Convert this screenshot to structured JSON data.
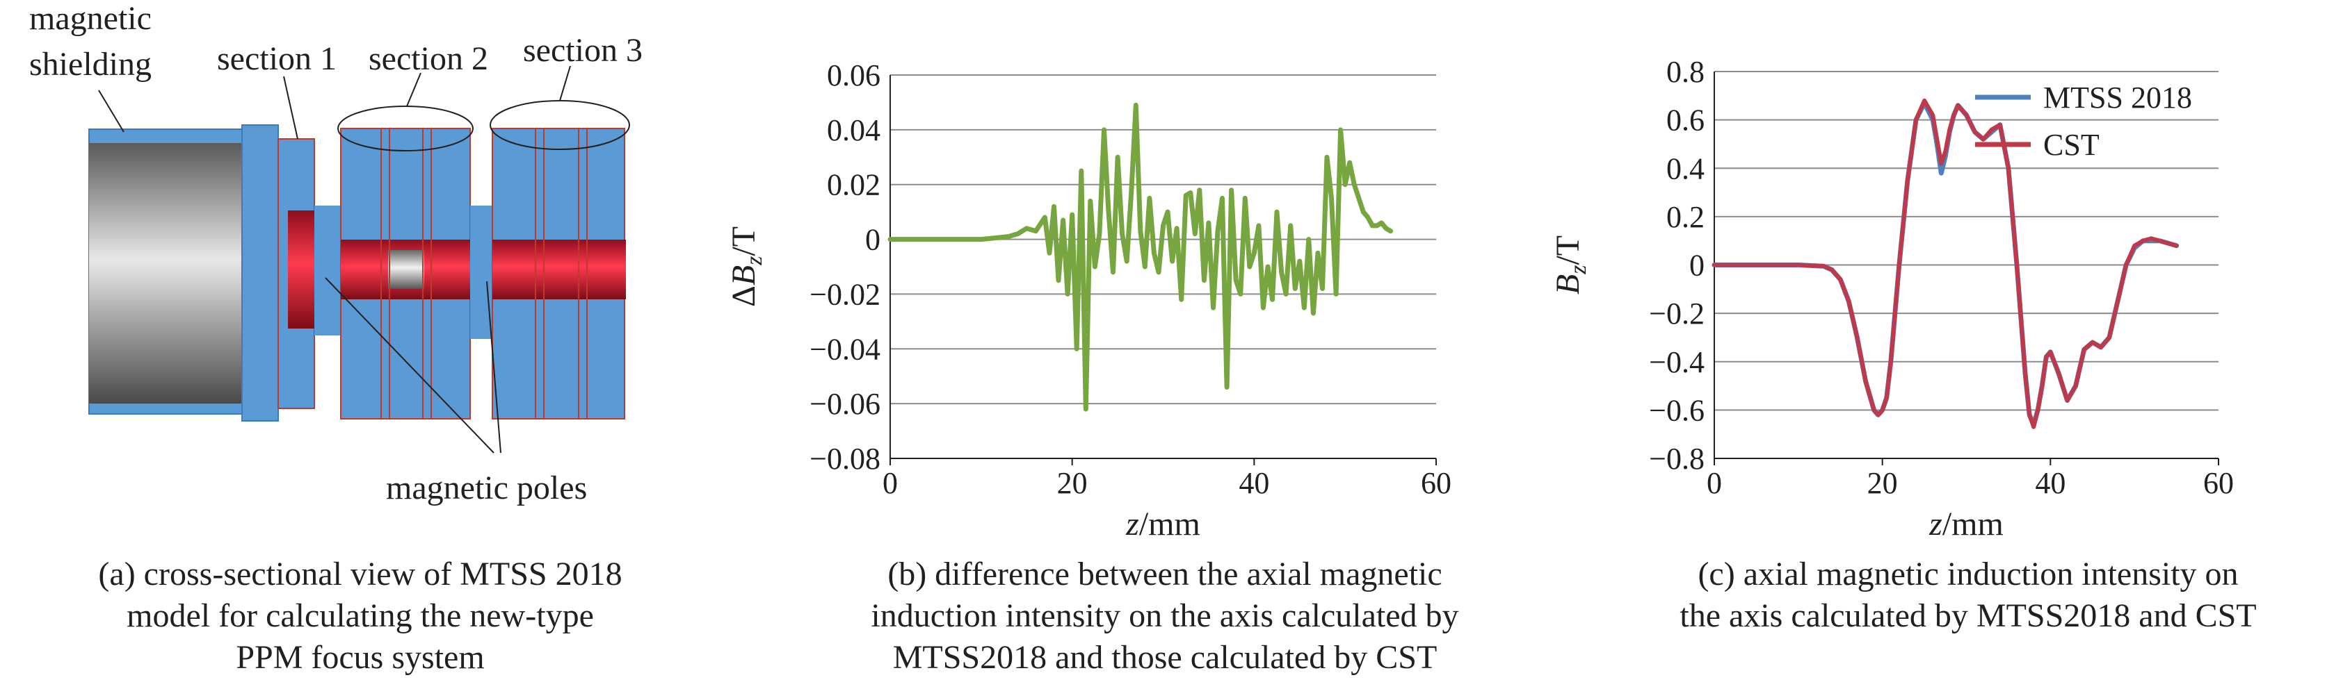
{
  "panel_a": {
    "labels": {
      "magnetic_shielding_line1": "magnetic",
      "magnetic_shielding_line2": "shielding",
      "section1": "section 1",
      "section2": "section 2",
      "section3": "section 3",
      "magnetic_poles": "magnetic poles"
    },
    "caption": [
      "(a) cross-sectional view of MTSS 2018",
      "model for calculating the new-type",
      "PPM focus system"
    ],
    "colors": {
      "blue": "#5b9bd5",
      "red": "#e0283c",
      "outline": "#c0392b"
    }
  },
  "chart_data": [
    {
      "type": "line",
      "xlabel": "z/mm",
      "ylabel": "ΔB_z/T",
      "xlim": [
        0,
        60
      ],
      "ylim": [
        -0.08,
        0.06
      ],
      "xticks": [
        "0",
        "20",
        "40",
        "60"
      ],
      "yticks": [
        "0.06",
        "0.04",
        "0.02",
        "0",
        "−0.02",
        "−0.04",
        "−0.06",
        "−0.08"
      ],
      "grid": "horizontal",
      "series": [
        {
          "color": "#77a540",
          "x": [
            0,
            5,
            10,
            13,
            14,
            15,
            16,
            17,
            17.5,
            18,
            18.5,
            19,
            19.5,
            20,
            20.5,
            21,
            21.5,
            22,
            22.5,
            23,
            23.5,
            24,
            24.5,
            25,
            25.5,
            26,
            26.5,
            27,
            27.5,
            28,
            28.5,
            29,
            29.5,
            30,
            30.5,
            31,
            31.5,
            32,
            32.5,
            33,
            33.5,
            34,
            34.5,
            35,
            35.5,
            36,
            36.5,
            37,
            37.5,
            38,
            38.5,
            39,
            39.5,
            40,
            40.5,
            41,
            41.5,
            42,
            42.5,
            43,
            43.5,
            44,
            44.5,
            45,
            45.5,
            46,
            46.5,
            47,
            47.5,
            48,
            48.5,
            49,
            49.5,
            50,
            50.5,
            51,
            51.5,
            52,
            52.5,
            53,
            53.5,
            54,
            54.5,
            55
          ],
          "y": [
            0,
            0,
            0,
            0.001,
            0.002,
            0.004,
            0.003,
            0.008,
            -0.005,
            0.012,
            -0.015,
            0.007,
            -0.02,
            0.009,
            -0.04,
            0.025,
            -0.062,
            0.014,
            -0.01,
            0.002,
            0.04,
            0.01,
            -0.012,
            0.03,
            0.002,
            -0.008,
            0.017,
            0.049,
            0.003,
            -0.01,
            0.015,
            -0.005,
            -0.012,
            0.005,
            0.01,
            -0.008,
            0.004,
            -0.022,
            0.016,
            0.017,
            0.002,
            0.018,
            -0.015,
            0.006,
            -0.025,
            0.003,
            0.015,
            -0.054,
            0.018,
            -0.015,
            -0.02,
            0.015,
            -0.01,
            -0.005,
            0.005,
            -0.025,
            -0.01,
            -0.022,
            0.01,
            -0.012,
            -0.02,
            0.005,
            -0.018,
            -0.008,
            -0.025,
            0.0,
            -0.027,
            -0.005,
            -0.018,
            0.03,
            0.015,
            -0.02,
            0.04,
            0.02,
            0.028,
            0.02,
            0.015,
            0.01,
            0.008,
            0.005,
            0.005,
            0.006,
            0.004,
            0.003
          ]
        }
      ],
      "caption": [
        "(b) difference between the axial magnetic",
        "induction intensity on the axis calculated by",
        "MTSS2018 and those calculated by CST"
      ]
    },
    {
      "type": "line",
      "xlabel": "z/mm",
      "ylabel": "B_z/T",
      "xlim": [
        0,
        60
      ],
      "ylim": [
        -0.8,
        0.8
      ],
      "xticks": [
        "0",
        "20",
        "40",
        "60"
      ],
      "yticks": [
        "0.8",
        "0.6",
        "0.4",
        "0.2",
        "0",
        "−0.2",
        "−0.4",
        "−0.6",
        "−0.8"
      ],
      "grid": "horizontal",
      "legend": "top-right",
      "series": [
        {
          "name": "MTSS 2018",
          "color": "#4f81bd",
          "x": [
            0,
            5,
            10,
            13,
            14,
            15,
            16,
            17,
            18,
            19,
            19.5,
            20,
            20.5,
            21,
            22,
            23,
            24,
            25,
            26,
            26.5,
            27,
            27.5,
            28,
            28.5,
            29,
            30,
            31,
            32,
            33,
            34,
            35,
            36,
            37,
            37.5,
            38,
            38.5,
            39,
            39.5,
            40,
            41,
            42,
            43,
            44,
            45,
            46,
            47,
            48,
            49,
            50,
            51,
            52,
            53,
            54,
            55
          ],
          "y": [
            0,
            0,
            0,
            -0.005,
            -0.02,
            -0.06,
            -0.15,
            -0.3,
            -0.48,
            -0.6,
            -0.62,
            -0.6,
            -0.55,
            -0.4,
            0,
            0.35,
            0.6,
            0.67,
            0.6,
            0.5,
            0.38,
            0.45,
            0.55,
            0.62,
            0.66,
            0.62,
            0.55,
            0.52,
            0.55,
            0.58,
            0.4,
            0,
            -0.45,
            -0.62,
            -0.66,
            -0.6,
            -0.5,
            -0.38,
            -0.36,
            -0.45,
            -0.56,
            -0.5,
            -0.35,
            -0.32,
            -0.34,
            -0.3,
            -0.15,
            0,
            0.07,
            0.1,
            0.1,
            0.1,
            0.09,
            0.08
          ]
        },
        {
          "name": "CST",
          "color": "#c0394b",
          "x": [
            0,
            5,
            10,
            13,
            14,
            15,
            16,
            17,
            18,
            19,
            19.5,
            20,
            20.5,
            21,
            22,
            23,
            24,
            25,
            26,
            26.5,
            27,
            27.5,
            28,
            28.5,
            29,
            30,
            31,
            32,
            33,
            34,
            35,
            36,
            37,
            37.5,
            38,
            38.5,
            39,
            39.5,
            40,
            41,
            42,
            43,
            44,
            45,
            46,
            47,
            48,
            49,
            50,
            51,
            52,
            53,
            54,
            55
          ],
          "y": [
            0,
            0,
            0,
            -0.005,
            -0.02,
            -0.06,
            -0.15,
            -0.3,
            -0.48,
            -0.6,
            -0.62,
            -0.6,
            -0.55,
            -0.4,
            0,
            0.35,
            0.6,
            0.68,
            0.62,
            0.52,
            0.42,
            0.47,
            0.56,
            0.62,
            0.66,
            0.62,
            0.55,
            0.52,
            0.56,
            0.58,
            0.4,
            0,
            -0.45,
            -0.62,
            -0.67,
            -0.6,
            -0.5,
            -0.38,
            -0.36,
            -0.45,
            -0.56,
            -0.5,
            -0.35,
            -0.32,
            -0.34,
            -0.3,
            -0.15,
            0,
            0.08,
            0.1,
            0.11,
            0.1,
            0.09,
            0.08
          ]
        }
      ],
      "caption": [
        "(c) axial magnetic induction intensity on",
        "the axis calculated by MTSS2018 and CST"
      ]
    }
  ]
}
